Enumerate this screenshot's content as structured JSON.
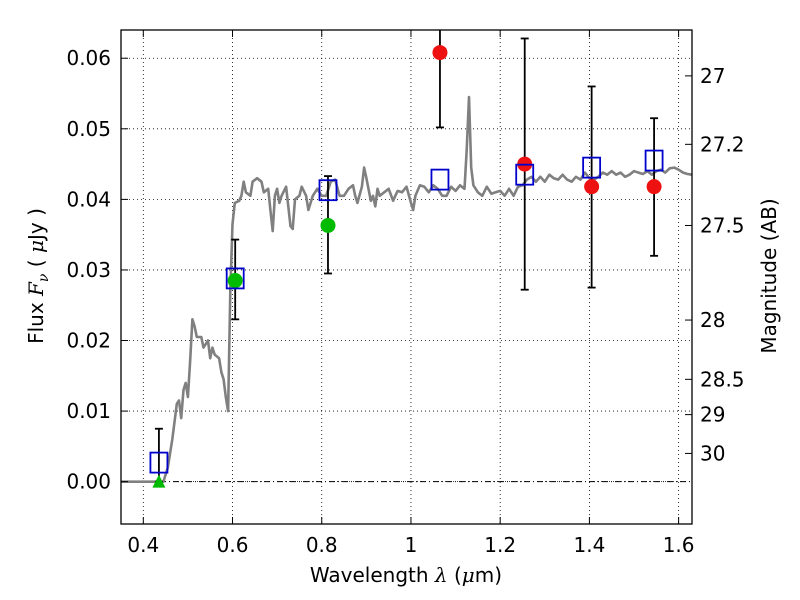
{
  "chart_data": {
    "type": "scatter",
    "xlabel": "Wavelength",
    "xlabel_symbol": "λ",
    "xlabel_unit_open": " (",
    "xlabel_unit_mu": "μ",
    "xlabel_unit_rest": "m)",
    "ylabel": "Flux",
    "ylabel_symbol": "F",
    "ylabel_subscript": "ν",
    "ylabel_unit_open": " ( ",
    "ylabel_unit_mu": "μ",
    "ylabel_unit_rest": "Jy )",
    "y2label": "Magnitude (AB)",
    "xlim": [
      0.35,
      1.63
    ],
    "ylim": [
      -0.006,
      0.064
    ],
    "grid": true,
    "x_ticks": [
      {
        "value": 0.4,
        "label": "0.4"
      },
      {
        "value": 0.6,
        "label": "0.6"
      },
      {
        "value": 0.8,
        "label": "0.8"
      },
      {
        "value": 1.0,
        "label": "1"
      },
      {
        "value": 1.2,
        "label": "1.2"
      },
      {
        "value": 1.4,
        "label": "1.4"
      },
      {
        "value": 1.6,
        "label": "1.6"
      }
    ],
    "y_ticks": [
      {
        "value": 0.0,
        "label": "0.00"
      },
      {
        "value": 0.01,
        "label": "0.01"
      },
      {
        "value": 0.02,
        "label": "0.02"
      },
      {
        "value": 0.03,
        "label": "0.03"
      },
      {
        "value": 0.04,
        "label": "0.04"
      },
      {
        "value": 0.05,
        "label": "0.05"
      },
      {
        "value": 0.06,
        "label": "0.06"
      }
    ],
    "y2_ticks": [
      {
        "flux": 0.0575,
        "label": "27"
      },
      {
        "flux": 0.0478,
        "label": "27.2"
      },
      {
        "flux": 0.0363,
        "label": "27.5"
      },
      {
        "flux": 0.0229,
        "label": "28"
      },
      {
        "flux": 0.0145,
        "label": "28.5"
      },
      {
        "flux": 0.0095,
        "label": "29"
      },
      {
        "flux": 0.004,
        "label": "30"
      }
    ],
    "zero_line": 0.0,
    "model_sed": {
      "color": "#808080",
      "points": [
        [
          0.35,
          0.0
        ],
        [
          0.42,
          0.0
        ],
        [
          0.445,
          0.0
        ],
        [
          0.455,
          0.002
        ],
        [
          0.465,
          0.006
        ],
        [
          0.475,
          0.011
        ],
        [
          0.48,
          0.0115
        ],
        [
          0.485,
          0.009
        ],
        [
          0.49,
          0.013
        ],
        [
          0.495,
          0.014
        ],
        [
          0.5,
          0.012
        ],
        [
          0.505,
          0.017
        ],
        [
          0.51,
          0.023
        ],
        [
          0.515,
          0.022
        ],
        [
          0.52,
          0.0205
        ],
        [
          0.53,
          0.0205
        ],
        [
          0.535,
          0.019
        ],
        [
          0.545,
          0.02
        ],
        [
          0.55,
          0.0175
        ],
        [
          0.555,
          0.019
        ],
        [
          0.56,
          0.018
        ],
        [
          0.57,
          0.0175
        ],
        [
          0.575,
          0.0155
        ],
        [
          0.58,
          0.0145
        ],
        [
          0.585,
          0.012
        ],
        [
          0.59,
          0.01
        ],
        [
          0.595,
          0.027
        ],
        [
          0.6,
          0.0365
        ],
        [
          0.605,
          0.0395
        ],
        [
          0.615,
          0.0398
        ],
        [
          0.62,
          0.0405
        ],
        [
          0.625,
          0.0425
        ],
        [
          0.63,
          0.041
        ],
        [
          0.64,
          0.0405
        ],
        [
          0.645,
          0.0425
        ],
        [
          0.655,
          0.043
        ],
        [
          0.665,
          0.0425
        ],
        [
          0.67,
          0.041
        ],
        [
          0.68,
          0.0415
        ],
        [
          0.685,
          0.0385
        ],
        [
          0.69,
          0.0355
        ],
        [
          0.695,
          0.0405
        ],
        [
          0.7,
          0.0415
        ],
        [
          0.705,
          0.0395
        ],
        [
          0.71,
          0.0405
        ],
        [
          0.72,
          0.0418
        ],
        [
          0.725,
          0.039
        ],
        [
          0.73,
          0.0362
        ],
        [
          0.735,
          0.0358
        ],
        [
          0.74,
          0.04
        ],
        [
          0.75,
          0.0405
        ],
        [
          0.755,
          0.0418
        ],
        [
          0.765,
          0.0405
        ],
        [
          0.77,
          0.0385
        ],
        [
          0.78,
          0.0405
        ],
        [
          0.79,
          0.0415
        ],
        [
          0.8,
          0.0405
        ],
        [
          0.81,
          0.0405
        ],
        [
          0.82,
          0.0425
        ],
        [
          0.83,
          0.0428
        ],
        [
          0.84,
          0.0405
        ],
        [
          0.85,
          0.0405
        ],
        [
          0.86,
          0.0415
        ],
        [
          0.87,
          0.042
        ],
        [
          0.875,
          0.0405
        ],
        [
          0.88,
          0.0395
        ],
        [
          0.89,
          0.0418
        ],
        [
          0.895,
          0.0445
        ],
        [
          0.9,
          0.043
        ],
        [
          0.91,
          0.0398
        ],
        [
          0.915,
          0.0405
        ],
        [
          0.92,
          0.039
        ],
        [
          0.925,
          0.0415
        ],
        [
          0.93,
          0.0405
        ],
        [
          0.94,
          0.041
        ],
        [
          0.95,
          0.0415
        ],
        [
          0.96,
          0.0398
        ],
        [
          0.965,
          0.0405
        ],
        [
          0.97,
          0.0412
        ],
        [
          0.98,
          0.041
        ],
        [
          0.99,
          0.0418
        ],
        [
          1.0,
          0.0395
        ],
        [
          1.005,
          0.0385
        ],
        [
          1.01,
          0.0405
        ],
        [
          1.02,
          0.042
        ],
        [
          1.03,
          0.0418
        ],
        [
          1.04,
          0.041
        ],
        [
          1.05,
          0.042
        ],
        [
          1.06,
          0.0415
        ],
        [
          1.07,
          0.0405
        ],
        [
          1.08,
          0.0405
        ],
        [
          1.09,
          0.0418
        ],
        [
          1.1,
          0.0412
        ],
        [
          1.11,
          0.042
        ],
        [
          1.12,
          0.0415
        ],
        [
          1.125,
          0.047
        ],
        [
          1.13,
          0.0545
        ],
        [
          1.135,
          0.0445
        ],
        [
          1.14,
          0.042
        ],
        [
          1.15,
          0.041
        ],
        [
          1.16,
          0.0405
        ],
        [
          1.17,
          0.0418
        ],
        [
          1.18,
          0.0408
        ],
        [
          1.19,
          0.041
        ],
        [
          1.2,
          0.0412
        ],
        [
          1.21,
          0.0405
        ],
        [
          1.22,
          0.0415
        ],
        [
          1.23,
          0.0405
        ],
        [
          1.24,
          0.0418
        ],
        [
          1.25,
          0.042
        ],
        [
          1.26,
          0.0428
        ],
        [
          1.27,
          0.0432
        ],
        [
          1.28,
          0.0425
        ],
        [
          1.29,
          0.0432
        ],
        [
          1.3,
          0.0425
        ],
        [
          1.31,
          0.0435
        ],
        [
          1.32,
          0.043
        ],
        [
          1.33,
          0.0428
        ],
        [
          1.34,
          0.0435
        ],
        [
          1.35,
          0.0428
        ],
        [
          1.36,
          0.0425
        ],
        [
          1.37,
          0.0432
        ],
        [
          1.38,
          0.0428
        ],
        [
          1.39,
          0.0438
        ],
        [
          1.4,
          0.043
        ],
        [
          1.41,
          0.0428
        ],
        [
          1.42,
          0.0432
        ],
        [
          1.43,
          0.0438
        ],
        [
          1.44,
          0.0435
        ],
        [
          1.45,
          0.044
        ],
        [
          1.46,
          0.0435
        ],
        [
          1.47,
          0.0438
        ],
        [
          1.48,
          0.0432
        ],
        [
          1.49,
          0.0435
        ],
        [
          1.5,
          0.044
        ],
        [
          1.51,
          0.0438
        ],
        [
          1.52,
          0.0436
        ],
        [
          1.53,
          0.044
        ],
        [
          1.54,
          0.0435
        ],
        [
          1.55,
          0.044
        ],
        [
          1.56,
          0.0442
        ],
        [
          1.57,
          0.0438
        ],
        [
          1.58,
          0.0444
        ],
        [
          1.59,
          0.0445
        ],
        [
          1.6,
          0.0442
        ],
        [
          1.61,
          0.0438
        ],
        [
          1.62,
          0.0436
        ],
        [
          1.63,
          0.0435
        ]
      ]
    },
    "series": [
      {
        "kind": "model_photometry",
        "marker": "open-square",
        "color": "#0000cc",
        "points": [
          {
            "x": 0.435,
            "y": 0.0027
          },
          {
            "x": 0.606,
            "y": 0.0288
          },
          {
            "x": 0.814,
            "y": 0.0413
          },
          {
            "x": 1.065,
            "y": 0.0428
          },
          {
            "x": 1.255,
            "y": 0.0435
          },
          {
            "x": 1.405,
            "y": 0.0445
          },
          {
            "x": 1.545,
            "y": 0.0455
          }
        ]
      },
      {
        "kind": "detection",
        "marker": "filled-circle",
        "color": "#00bb00",
        "points": [
          {
            "x": 0.606,
            "y": 0.0285,
            "err_lo": 0.023,
            "err_hi": 0.0343
          },
          {
            "x": 0.814,
            "y": 0.0363,
            "err_lo": 0.0295,
            "err_hi": 0.0433
          }
        ]
      },
      {
        "kind": "low_significance",
        "marker": "filled-circle",
        "color": "#ee1111",
        "points": [
          {
            "x": 1.065,
            "y": 0.0608,
            "err_lo": 0.0502,
            "err_hi": 0.0645
          },
          {
            "x": 1.255,
            "y": 0.045,
            "err_lo": 0.0272,
            "err_hi": 0.0628
          },
          {
            "x": 1.405,
            "y": 0.0418,
            "err_lo": 0.0275,
            "err_hi": 0.056
          },
          {
            "x": 1.545,
            "y": 0.0418,
            "err_lo": 0.032,
            "err_hi": 0.0515
          }
        ]
      },
      {
        "kind": "upper_limit",
        "marker": "filled-triangle",
        "color": "#00bb00",
        "points": [
          {
            "x": 0.435,
            "y": 0.0,
            "err_lo": 0.0,
            "err_hi": 0.0075
          }
        ]
      }
    ]
  }
}
